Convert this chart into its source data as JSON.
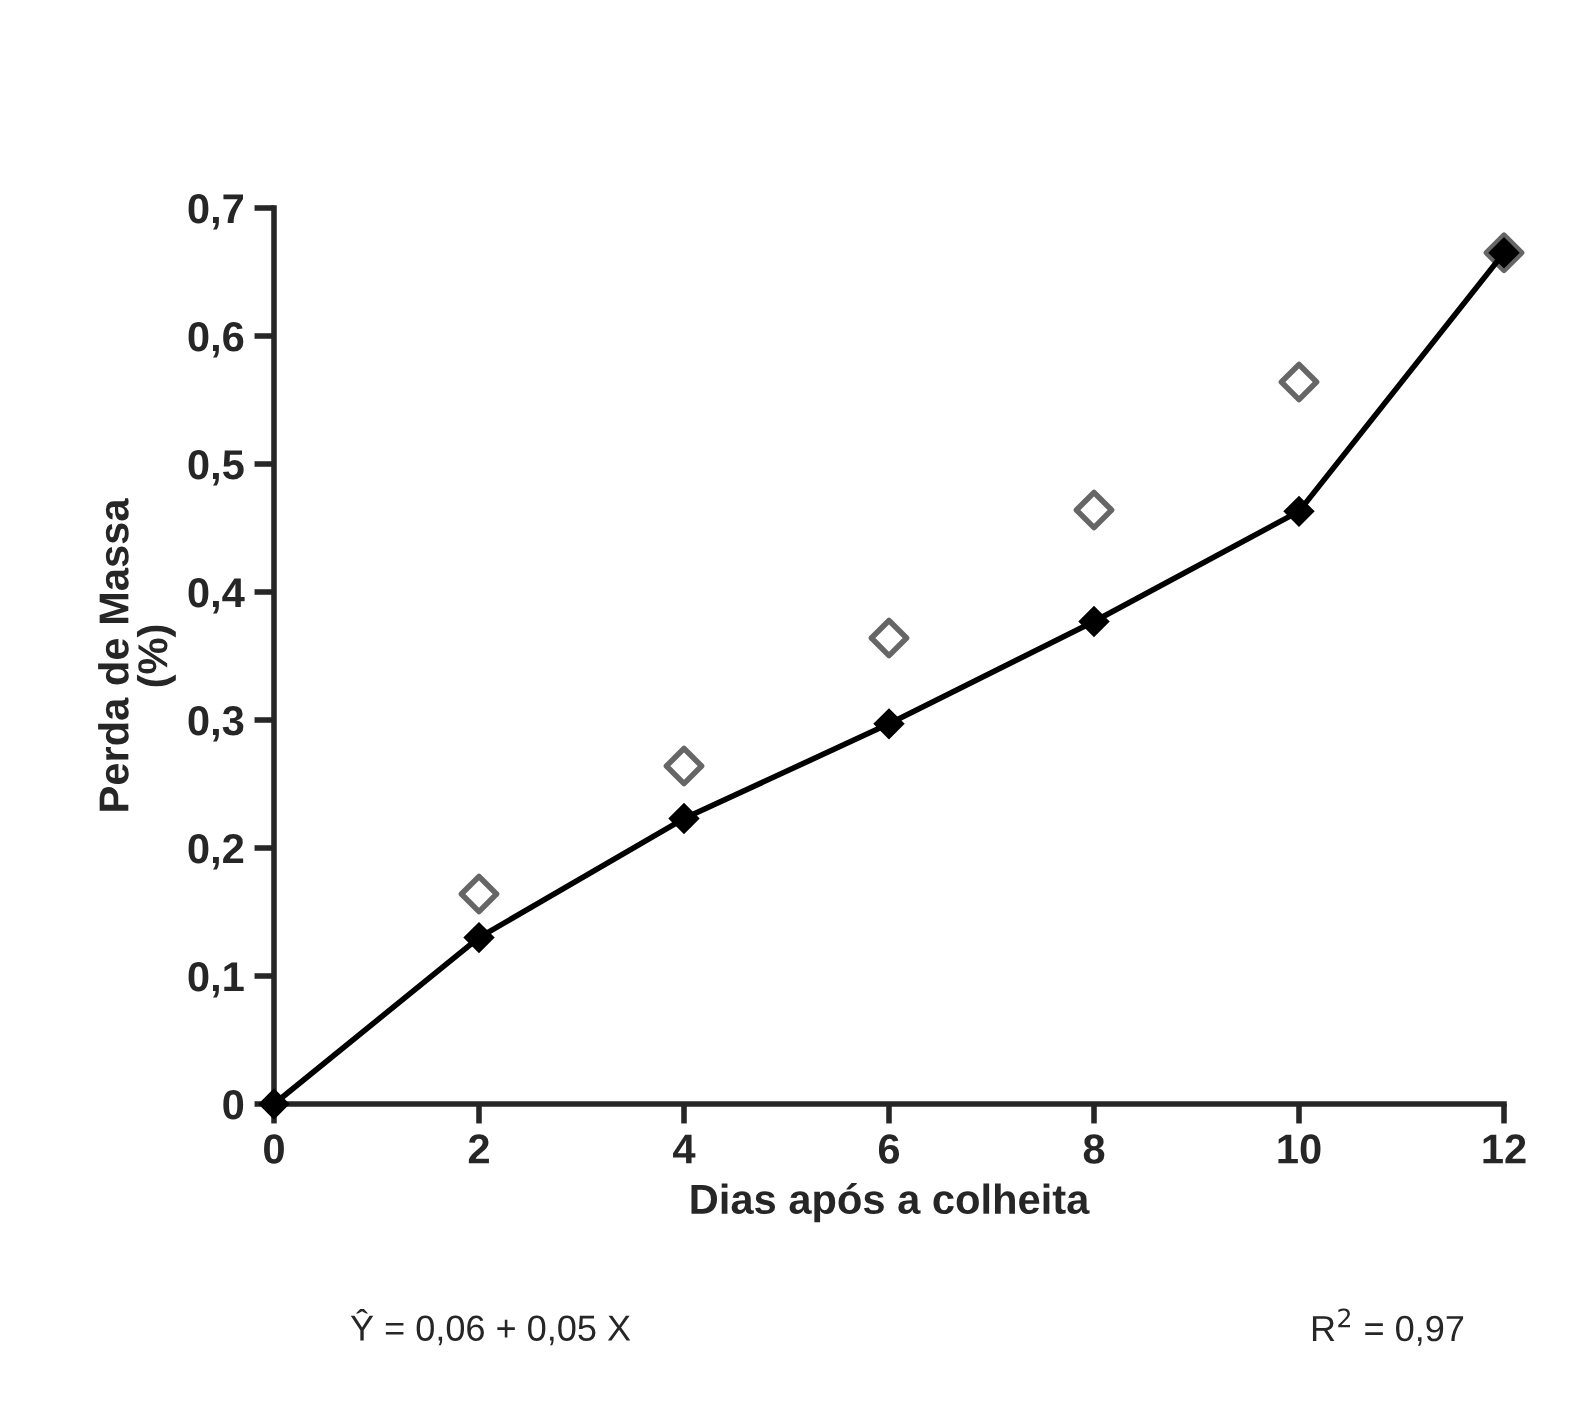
{
  "chart_data": {
    "type": "line",
    "xlabel": "Dias após a colheita",
    "ylabel": "Perda de Massa\n(%)",
    "series": [
      {
        "color": "#000000",
        "marker": "diamond",
        "x": [
          0,
          2,
          4,
          6,
          8,
          10,
          12
        ],
        "values": [
          0,
          0.13,
          0.223,
          0.297,
          0.377,
          0.463,
          0.665
        ]
      },
      {
        "type": "scatter",
        "color": "#666666",
        "marker": "diamond",
        "x": [
          2,
          4,
          6,
          8,
          10,
          12
        ],
        "values": [
          0.164,
          0.264,
          0.364,
          0.464,
          0.564,
          0.665
        ]
      }
    ],
    "xlim": [
      0,
      12
    ],
    "xticks": [
      0,
      2,
      4,
      6,
      8,
      10,
      12
    ],
    "ylim": [
      0,
      0.7
    ],
    "yticks": [
      0,
      {
        "value": 0.1,
        "label": "0,1"
      },
      {
        "value": 0.2,
        "label": "0,2"
      },
      {
        "value": 0.3,
        "label": "0,3"
      },
      {
        "value": 0.4,
        "label": "0,4"
      },
      {
        "value": 0.5,
        "label": "0,5"
      },
      {
        "value": 0.6,
        "label": "0,6"
      },
      {
        "value": 0.7,
        "label": "0,7"
      }
    ],
    "grid": false,
    "legend": false,
    "annotations": [
      "Ŷ = 0,06 + 0,05 X",
      "R$^{2}$ = 0,97"
    ]
  }
}
